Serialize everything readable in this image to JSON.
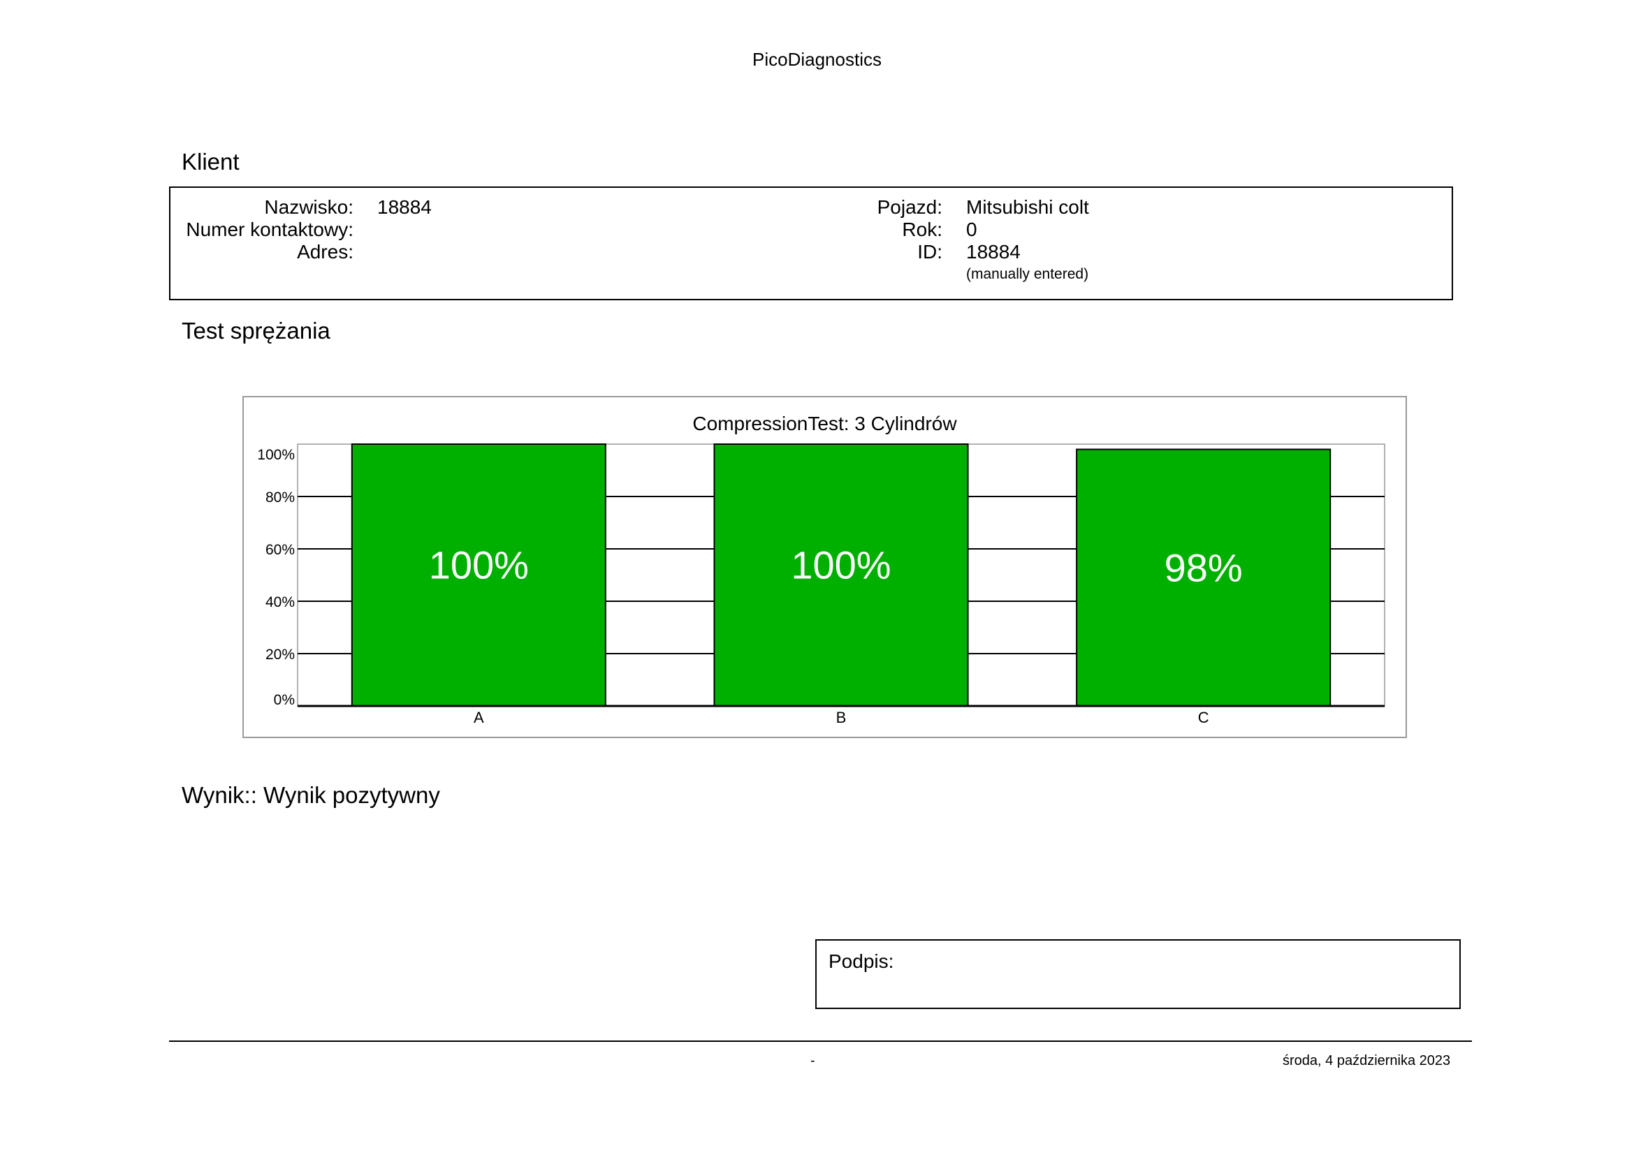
{
  "header": {
    "title": "PicoDiagnostics"
  },
  "client": {
    "section_title": "Klient",
    "surname_label": "Nazwisko:",
    "surname_value": "18884",
    "phone_label": "Numer kontaktowy:",
    "phone_value": "",
    "address_label": "Adres:",
    "address_value": "",
    "vehicle_label": "Pojazd:",
    "vehicle_value": "Mitsubishi colt",
    "year_label": "Rok:",
    "year_value": "0",
    "id_label": "ID:",
    "id_value": "18884",
    "id_note": "(manually entered)"
  },
  "test": {
    "section_title": "Test sprężania"
  },
  "chart_data": {
    "type": "bar",
    "title": "CompressionTest: 3 Cylindrów",
    "categories": [
      "A",
      "B",
      "C"
    ],
    "values": [
      100,
      100,
      98
    ],
    "value_labels": [
      "100%",
      "100%",
      "98%"
    ],
    "yticks": [
      "0%",
      "20%",
      "40%",
      "60%",
      "80%",
      "100%"
    ],
    "ylim": [
      0,
      100
    ],
    "bar_color": "#00B000",
    "grid": true,
    "xlabel": "",
    "ylabel": ""
  },
  "result": {
    "text": "Wynik:: Wynik pozytywny"
  },
  "signature": {
    "label": "Podpis:"
  },
  "footer": {
    "center": "-",
    "date": "środa, 4 października 2023"
  }
}
